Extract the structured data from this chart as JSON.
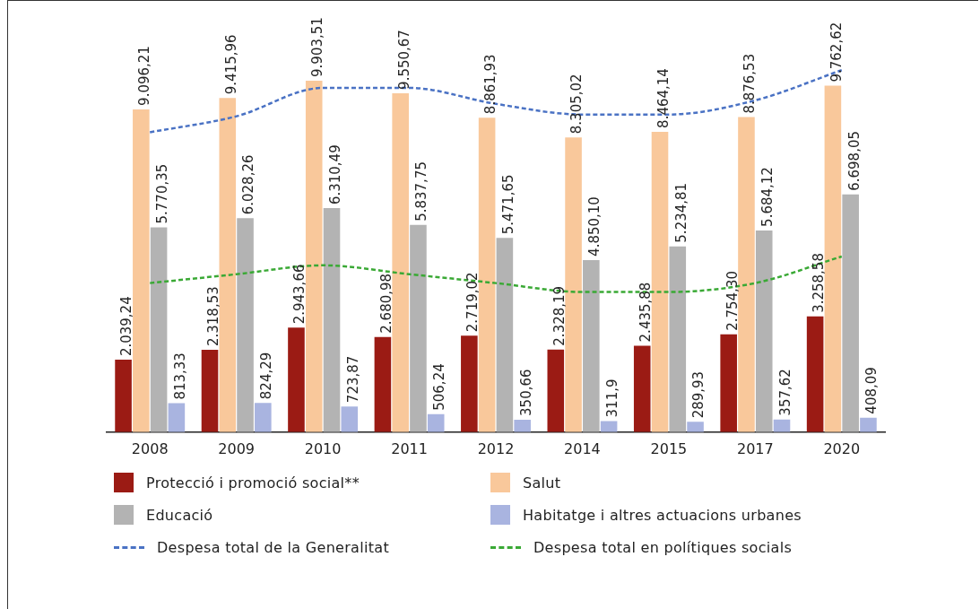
{
  "chart_data": {
    "type": "bar",
    "categories": [
      "2008",
      "2009",
      "2010",
      "2011",
      "2012",
      "2014",
      "2015",
      "2017",
      "2020"
    ],
    "legend": "bottom",
    "marker": "none",
    "tick_labels": "x",
    "series": [
      {
        "name": "Protecció i promoció social**",
        "color": "#9b1b14",
        "values": [
          2039.24,
          2318.53,
          2943.66,
          2680.98,
          2719.02,
          2328.19,
          2435.88,
          2754.3,
          3258.58
        ],
        "value_labels": [
          "2.039,24",
          "2.318,53",
          "2.943,66",
          "2.680,98",
          "2.719,02",
          "2.328,19",
          "2.435,88",
          "2.754,30",
          "3.258,58"
        ]
      },
      {
        "name": "Salut",
        "color": "#f9c89b",
        "values": [
          9096.21,
          9415.96,
          9903.51,
          9550.67,
          8861.93,
          8305.02,
          8464.14,
          8876.53,
          9762.62
        ],
        "value_labels": [
          "9.096,21",
          "9.415,96",
          "9.903,51",
          "9.550,67",
          "8.861,93",
          "8.305,02",
          "8.464,14",
          "8.876,53",
          "9.762,62"
        ]
      },
      {
        "name": "Educació",
        "color": "#b3b3b3",
        "values": [
          5770.35,
          6028.26,
          6310.49,
          5837.75,
          5471.65,
          4850.1,
          5234.81,
          5684.12,
          6698.05
        ],
        "value_labels": [
          "5.770,35",
          "6.028,26",
          "6.310,49",
          "5.837,75",
          "5.471,65",
          "4.850,10",
          "5.234,81",
          "5.684,12",
          "6.698,05"
        ]
      },
      {
        "name": "Habitatge i altres actuacions urbanes",
        "color": "#a9b4e0",
        "values": [
          813.33,
          824.29,
          723.87,
          506.24,
          350.66,
          311.9,
          289.93,
          357.62,
          408.09
        ],
        "value_labels": [
          "813,33",
          "824,29",
          "723,87",
          "506,24",
          "350,66",
          "311,9",
          "289,93",
          "357,62",
          "408,09"
        ]
      },
      {
        "name": "Despesa total de la Generalitat",
        "type": "line",
        "line_style": "dashed",
        "color": "#4a72c4",
        "values": [
          8450,
          8900,
          9700,
          9700,
          9250,
          8950,
          8950,
          9350,
          10200
        ]
      },
      {
        "name": "Despesa total en polítiques socials",
        "type": "line",
        "line_style": "dashed",
        "color": "#3aa935",
        "values": [
          4200,
          4450,
          4700,
          4450,
          4200,
          3950,
          3950,
          4200,
          4950
        ]
      }
    ]
  }
}
